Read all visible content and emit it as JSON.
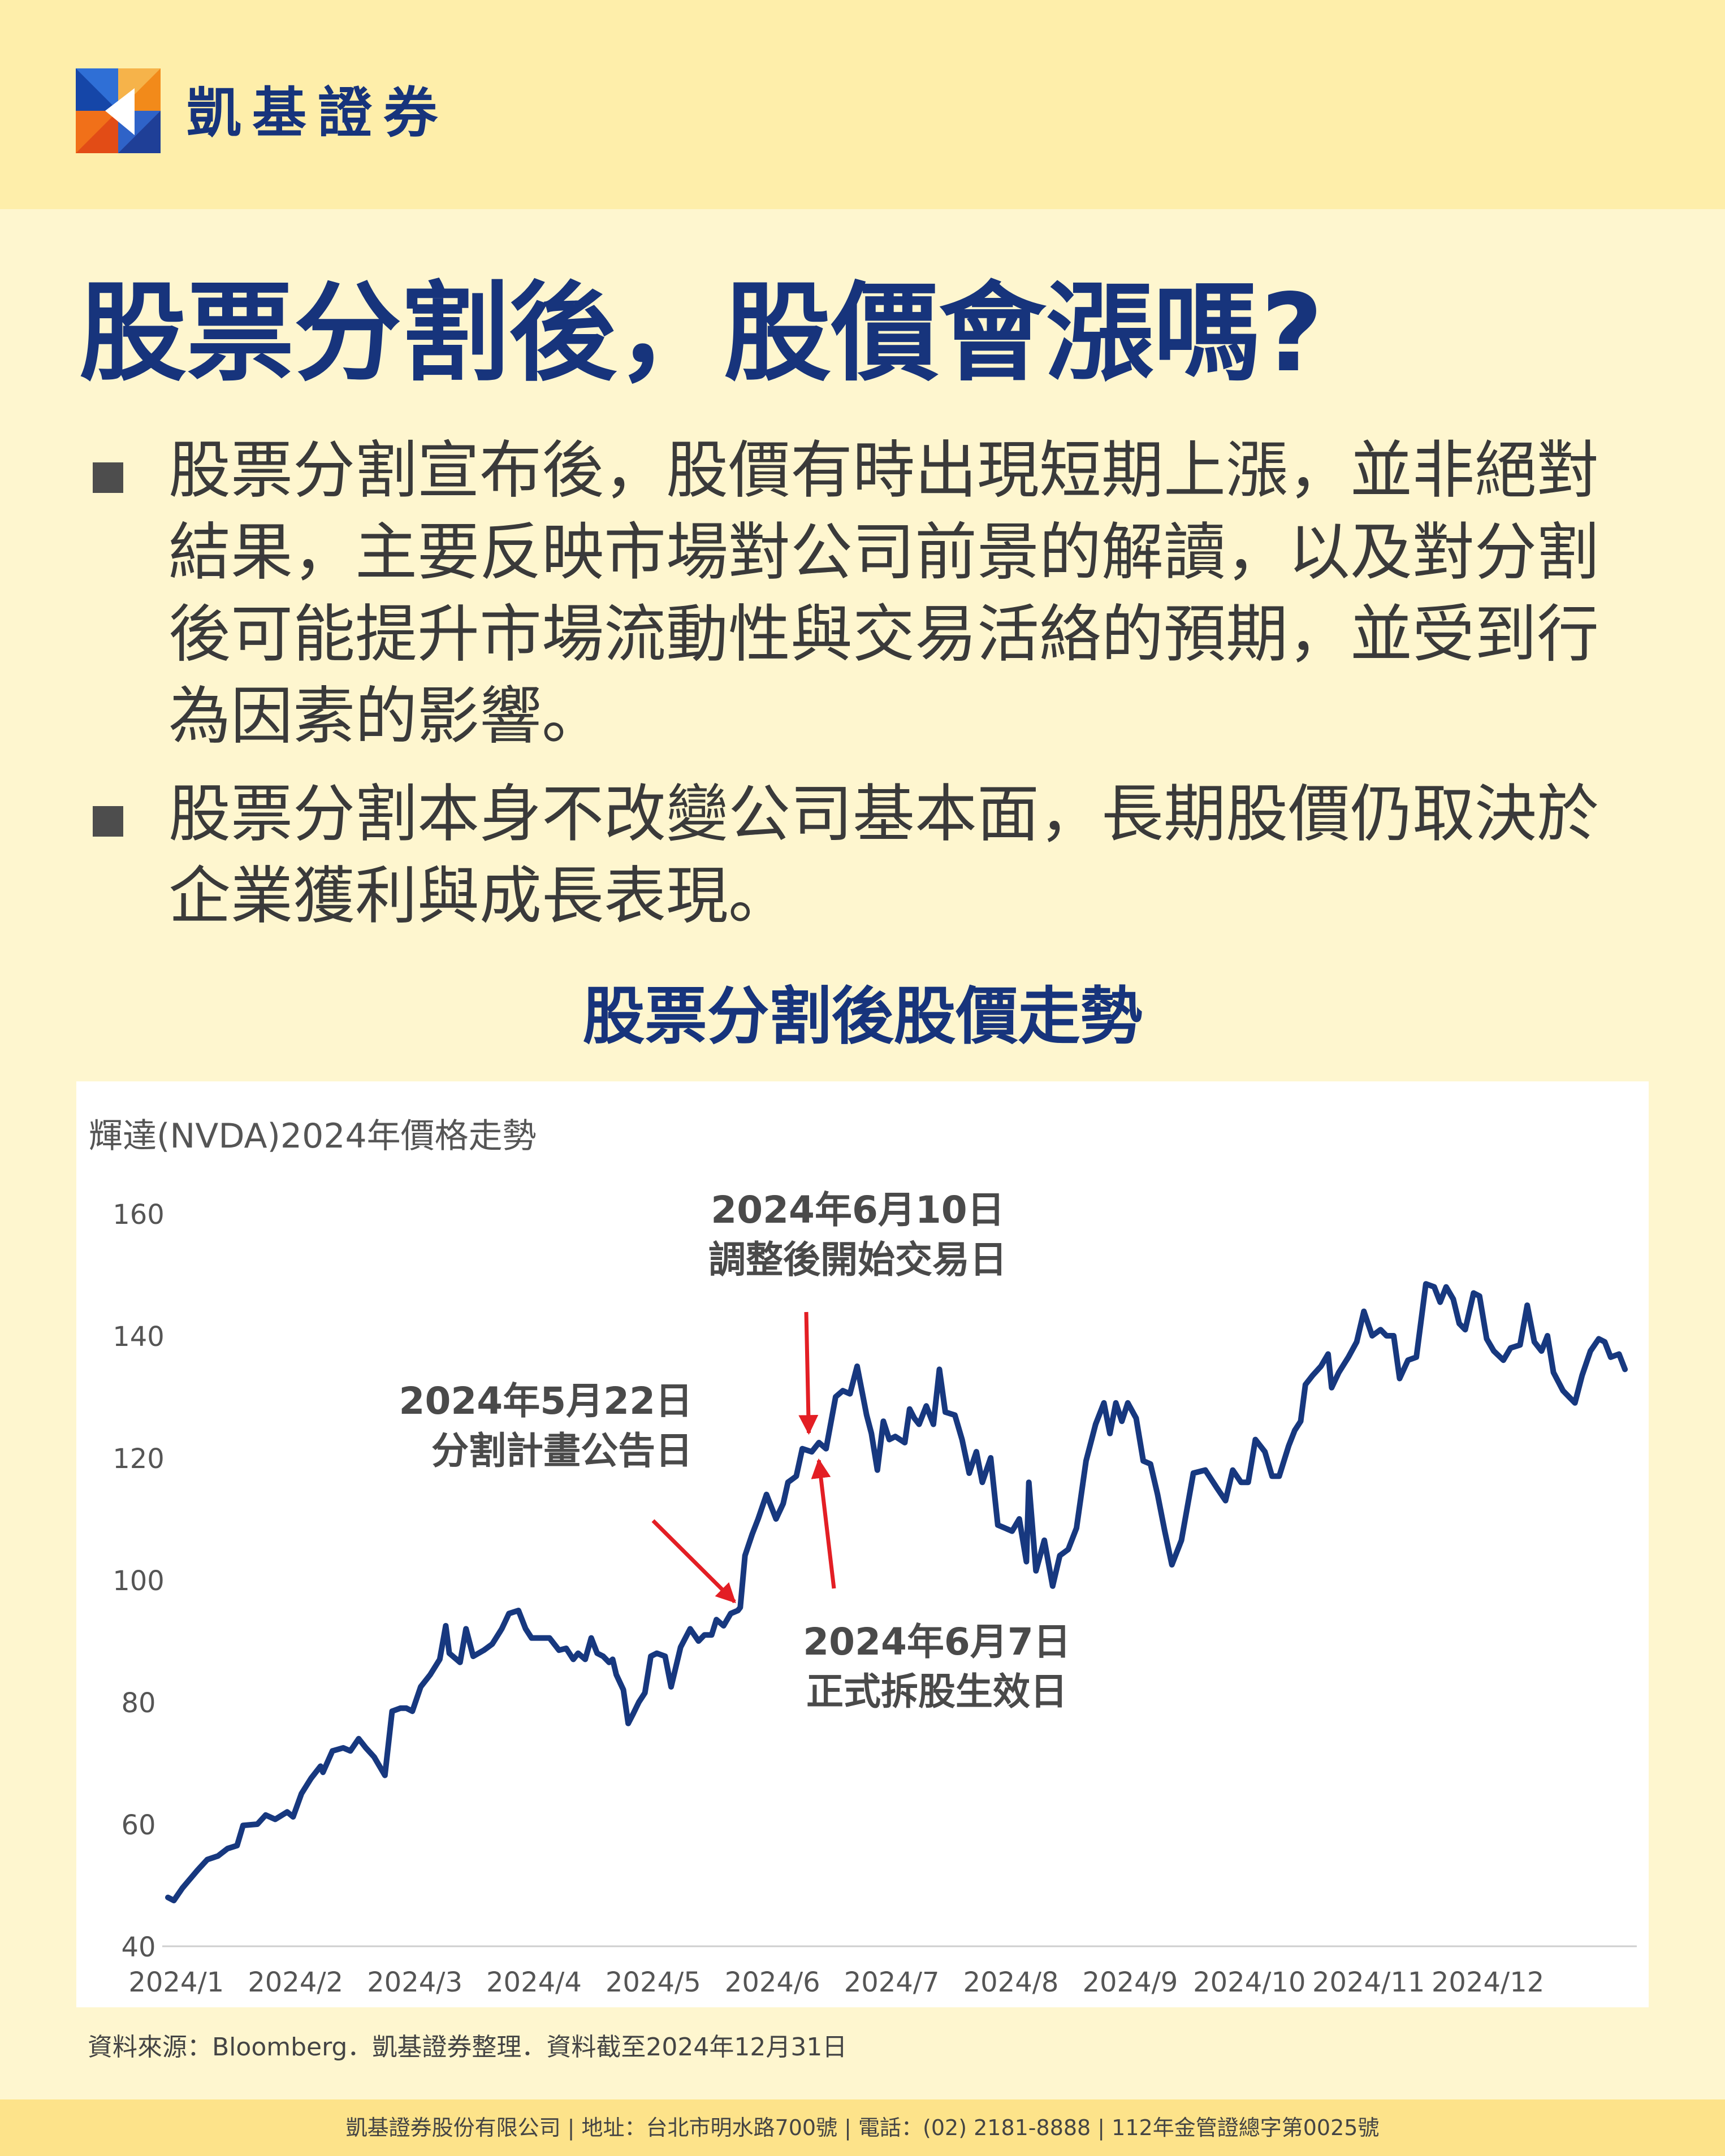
{
  "brand": {
    "name": "凱基證券",
    "logo_icon": "kgi-logo-icon"
  },
  "headline": "股票分割後，股價會漲嗎?",
  "bullets": [
    "股票分割宣布後，股價有時出現短期上漲，並非絕對結果，主要反映市場對公司前景的解讀，以及對分割後可能提升市場流動性與交易活絡的預期，並受到行為因素的影響。",
    "股票分割本身不改變公司基本面，長期股價仍取決於企業獲利與成長表現。"
  ],
  "section_title": "股票分割後股價走勢",
  "chart_data": {
    "type": "line",
    "title": "輝達(NVDA)2024年價格走勢",
    "xlabel": "",
    "ylabel": "",
    "ylim": [
      40,
      160
    ],
    "yticks": [
      40,
      60,
      80,
      100,
      120,
      140,
      160
    ],
    "xticks": [
      "2024/1",
      "2024/2",
      "2024/3",
      "2024/4",
      "2024/5",
      "2024/6",
      "2024/7",
      "2024/8",
      "2024/9",
      "2024/10",
      "2024/11",
      "2024/12"
    ],
    "grid": false,
    "line_color": "#17387f",
    "series": [
      {
        "values": [
          [
            0,
            48
          ],
          [
            0.05,
            47.5
          ],
          [
            0.12,
            49.5
          ],
          [
            0.25,
            52.5
          ],
          [
            0.33,
            54.2
          ],
          [
            0.42,
            54.8
          ],
          [
            0.5,
            56
          ],
          [
            0.58,
            56.5
          ],
          [
            0.63,
            59.8
          ],
          [
            0.75,
            60
          ],
          [
            0.82,
            61.5
          ],
          [
            0.9,
            60.8
          ],
          [
            1.0,
            62
          ],
          [
            1.05,
            61.2
          ],
          [
            1.12,
            65
          ],
          [
            1.2,
            67.5
          ],
          [
            1.28,
            69.5
          ],
          [
            1.3,
            68.5
          ],
          [
            1.38,
            72
          ],
          [
            1.47,
            72.5
          ],
          [
            1.53,
            72
          ],
          [
            1.6,
            74
          ],
          [
            1.66,
            72.5
          ],
          [
            1.73,
            71
          ],
          [
            1.82,
            68
          ],
          [
            1.88,
            78.5
          ],
          [
            1.95,
            79
          ],
          [
            2.0,
            79
          ],
          [
            2.05,
            78.5
          ],
          [
            2.12,
            82.5
          ],
          [
            2.2,
            84.5
          ],
          [
            2.28,
            87
          ],
          [
            2.33,
            92.5
          ],
          [
            2.36,
            88
          ],
          [
            2.45,
            86.5
          ],
          [
            2.5,
            92
          ],
          [
            2.56,
            87.5
          ],
          [
            2.65,
            88.5
          ],
          [
            2.72,
            89.5
          ],
          [
            2.8,
            92
          ],
          [
            2.86,
            94.5
          ],
          [
            2.94,
            95
          ],
          [
            3.0,
            92
          ],
          [
            3.05,
            90.5
          ],
          [
            3.14,
            90.5
          ],
          [
            3.2,
            90.5
          ],
          [
            3.28,
            88.5
          ],
          [
            3.34,
            88.8
          ],
          [
            3.4,
            87
          ],
          [
            3.44,
            88
          ],
          [
            3.5,
            87
          ],
          [
            3.55,
            90.5
          ],
          [
            3.6,
            88
          ],
          [
            3.65,
            87.5
          ],
          [
            3.7,
            86.5
          ],
          [
            3.73,
            87
          ],
          [
            3.76,
            84.5
          ],
          [
            3.82,
            82
          ],
          [
            3.86,
            76.5
          ],
          [
            3.9,
            78
          ],
          [
            3.95,
            80
          ],
          [
            4.0,
            81.5
          ],
          [
            4.05,
            87.5
          ],
          [
            4.1,
            88
          ],
          [
            4.17,
            87.5
          ],
          [
            4.22,
            82.5
          ],
          [
            4.3,
            89
          ],
          [
            4.38,
            92
          ],
          [
            4.45,
            90
          ],
          [
            4.5,
            91
          ],
          [
            4.56,
            91
          ],
          [
            4.6,
            93.5
          ],
          [
            4.66,
            92.5
          ],
          [
            4.72,
            94.5
          ],
          [
            4.78,
            95
          ],
          [
            4.8,
            95.5
          ],
          [
            4.84,
            104
          ],
          [
            4.9,
            107.5
          ],
          [
            4.95,
            110
          ],
          [
            5.02,
            114
          ],
          [
            5.1,
            110
          ],
          [
            5.16,
            112.5
          ],
          [
            5.2,
            116
          ],
          [
            5.27,
            117
          ],
          [
            5.32,
            121.5
          ],
          [
            5.4,
            121
          ],
          [
            5.46,
            122.5
          ],
          [
            5.52,
            121.5
          ],
          [
            5.6,
            130
          ],
          [
            5.66,
            131
          ],
          [
            5.72,
            130.5
          ],
          [
            5.78,
            135
          ],
          [
            5.82,
            131
          ],
          [
            5.86,
            127
          ],
          [
            5.9,
            124
          ],
          [
            5.95,
            118
          ],
          [
            6.0,
            126
          ],
          [
            6.05,
            123
          ],
          [
            6.1,
            123.5
          ],
          [
            6.18,
            122.5
          ],
          [
            6.22,
            128
          ],
          [
            6.26,
            126.5
          ],
          [
            6.3,
            125.5
          ],
          [
            6.36,
            128.5
          ],
          [
            6.42,
            125.5
          ],
          [
            6.47,
            134.5
          ],
          [
            6.52,
            127.5
          ],
          [
            6.6,
            127
          ],
          [
            6.66,
            123
          ],
          [
            6.72,
            117.5
          ],
          [
            6.78,
            121
          ],
          [
            6.83,
            116
          ],
          [
            6.9,
            120
          ],
          [
            6.96,
            109
          ],
          [
            7.02,
            108.5
          ],
          [
            7.08,
            108
          ],
          [
            7.14,
            110
          ],
          [
            7.2,
            103
          ],
          [
            7.22,
            116
          ],
          [
            7.28,
            101.5
          ],
          [
            7.35,
            106.5
          ],
          [
            7.42,
            99
          ],
          [
            7.48,
            104
          ],
          [
            7.55,
            105
          ],
          [
            7.62,
            108.5
          ],
          [
            7.7,
            119.5
          ],
          [
            7.78,
            125.5
          ],
          [
            7.85,
            129
          ],
          [
            7.9,
            124
          ],
          [
            7.95,
            129
          ],
          [
            8.0,
            126
          ],
          [
            8.05,
            129
          ],
          [
            8.12,
            126.5
          ],
          [
            8.18,
            119.5
          ],
          [
            8.24,
            119
          ],
          [
            8.3,
            114
          ],
          [
            8.36,
            108
          ],
          [
            8.42,
            102.5
          ],
          [
            8.5,
            106.5
          ],
          [
            8.6,
            117.5
          ],
          [
            8.7,
            118
          ],
          [
            8.8,
            115
          ],
          [
            8.87,
            113
          ],
          [
            8.93,
            118
          ],
          [
            9.0,
            116
          ],
          [
            9.06,
            116
          ],
          [
            9.12,
            123
          ],
          [
            9.2,
            121
          ],
          [
            9.26,
            117
          ],
          [
            9.32,
            117
          ],
          [
            9.4,
            122
          ],
          [
            9.45,
            124.5
          ],
          [
            9.5,
            126
          ],
          [
            9.54,
            132
          ],
          [
            9.6,
            133.5
          ],
          [
            9.67,
            135
          ],
          [
            9.73,
            137
          ],
          [
            9.76,
            131.5
          ],
          [
            9.82,
            134
          ],
          [
            9.9,
            136.5
          ],
          [
            9.97,
            139
          ],
          [
            10.03,
            144
          ],
          [
            10.1,
            140
          ],
          [
            10.17,
            141
          ],
          [
            10.22,
            140
          ],
          [
            10.28,
            140
          ],
          [
            10.33,
            133
          ],
          [
            10.4,
            136
          ],
          [
            10.47,
            136.5
          ],
          [
            10.55,
            148.5
          ],
          [
            10.62,
            148
          ],
          [
            10.67,
            145.5
          ],
          [
            10.72,
            148
          ],
          [
            10.78,
            146
          ],
          [
            10.83,
            142
          ],
          [
            10.88,
            141
          ],
          [
            10.95,
            147
          ],
          [
            11.0,
            146.5
          ],
          [
            11.06,
            139.5
          ],
          [
            11.12,
            137.5
          ],
          [
            11.2,
            136
          ],
          [
            11.26,
            138
          ],
          [
            11.34,
            138.5
          ],
          [
            11.4,
            145
          ],
          [
            11.46,
            139
          ],
          [
            11.52,
            137.5
          ],
          [
            11.57,
            140
          ],
          [
            11.62,
            134
          ],
          [
            11.7,
            131
          ],
          [
            11.75,
            130
          ],
          [
            11.8,
            129
          ],
          [
            11.86,
            133.5
          ],
          [
            11.93,
            137.5
          ],
          [
            12.0,
            139.5
          ],
          [
            12.05,
            139
          ],
          [
            12.1,
            136.5
          ],
          [
            12.17,
            137
          ],
          [
            12.22,
            134.5
          ]
        ]
      }
    ],
    "annotations": [
      {
        "lines": [
          "2024年5月22日",
          "分割計畫公告日"
        ],
        "x": 4.8,
        "y": 95.5,
        "color": "#e31e24"
      },
      {
        "lines": [
          "2024年6月7日",
          "正式拆股生效日"
        ],
        "x": 5.44,
        "y": 122,
        "color": "#e31e24"
      },
      {
        "lines": [
          "2024年6月10日",
          "調整後開始交易日"
        ],
        "x": 5.37,
        "y": 121.5,
        "color": "#e31e24"
      }
    ]
  },
  "source": "資料來源：Bloomberg．凱基證券整理．資料截至2024年12月31日",
  "footer": "凱基證券股份有限公司 | 地址：台北市明水路700號 | 電話：(02) 2181-8888 | 112年金管證總字第0025號"
}
